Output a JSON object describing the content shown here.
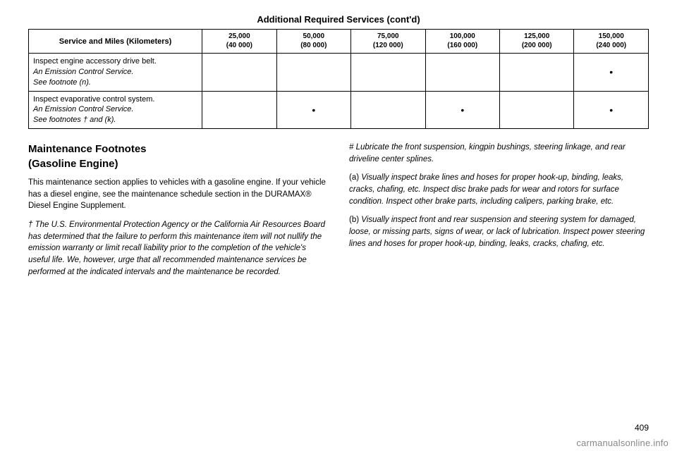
{
  "table": {
    "title": "Additional Required Services (cont'd)",
    "headers": {
      "service": "Service and Miles (Kilometers)",
      "c1": "25,000\n(40 000)",
      "c2": "50,000\n(80 000)",
      "c3": "75,000\n(120 000)",
      "c4": "100,000\n(160 000)",
      "c5": "125,000\n(200 000)",
      "c6": "150,000\n(240 000)"
    },
    "rows": [
      {
        "service_line1": "Inspect engine accessory drive belt.",
        "service_line2": "An Emission Control Service.",
        "service_line3": "See footnote (n).",
        "marks": [
          "",
          "",
          "",
          "",
          "",
          "•"
        ]
      },
      {
        "service_line1": "Inspect evaporative control system.",
        "service_line2": "An Emission Control Service.",
        "service_line3": "See footnotes † and (k).",
        "marks": [
          "",
          "•",
          "",
          "•",
          "",
          "•"
        ]
      }
    ]
  },
  "left": {
    "heading1": "Maintenance Footnotes",
    "heading2": "(Gasoline Engine)",
    "p1": "This maintenance section applies to vehicles with a gasoline engine. If your vehicle has a diesel engine, see the maintenance schedule section in the DURAMAX® Diesel Engine Supplement.",
    "p2": "† The U.S. Environmental Protection Agency or the California Air Resources Board has determined that the failure to perform this maintenance item will not nullify the emission warranty or limit recall liability prior to the completion of the vehicle's useful life. We, however, urge that all recommended maintenance services be performed at the indicated intervals and the maintenance be recorded."
  },
  "right": {
    "p1": "# Lubricate the front suspension, kingpin bushings, steering linkage, and rear driveline center splines.",
    "p2a": "(a) ",
    "p2b": "Visually inspect brake lines and hoses for proper hook-up, binding, leaks, cracks, chafing, etc. Inspect disc brake pads for wear and rotors for surface condition. Inspect other brake parts, including calipers, parking brake, etc.",
    "p3a": "(b) ",
    "p3b": "Visually inspect front and rear suspension and steering system for damaged, loose, or missing parts, signs of wear, or lack of lubrication. Inspect power steering lines and hoses for proper hook-up, binding, leaks, cracks, chafing, etc."
  },
  "pagenum": "409",
  "watermark": "carmanualsonline.info"
}
